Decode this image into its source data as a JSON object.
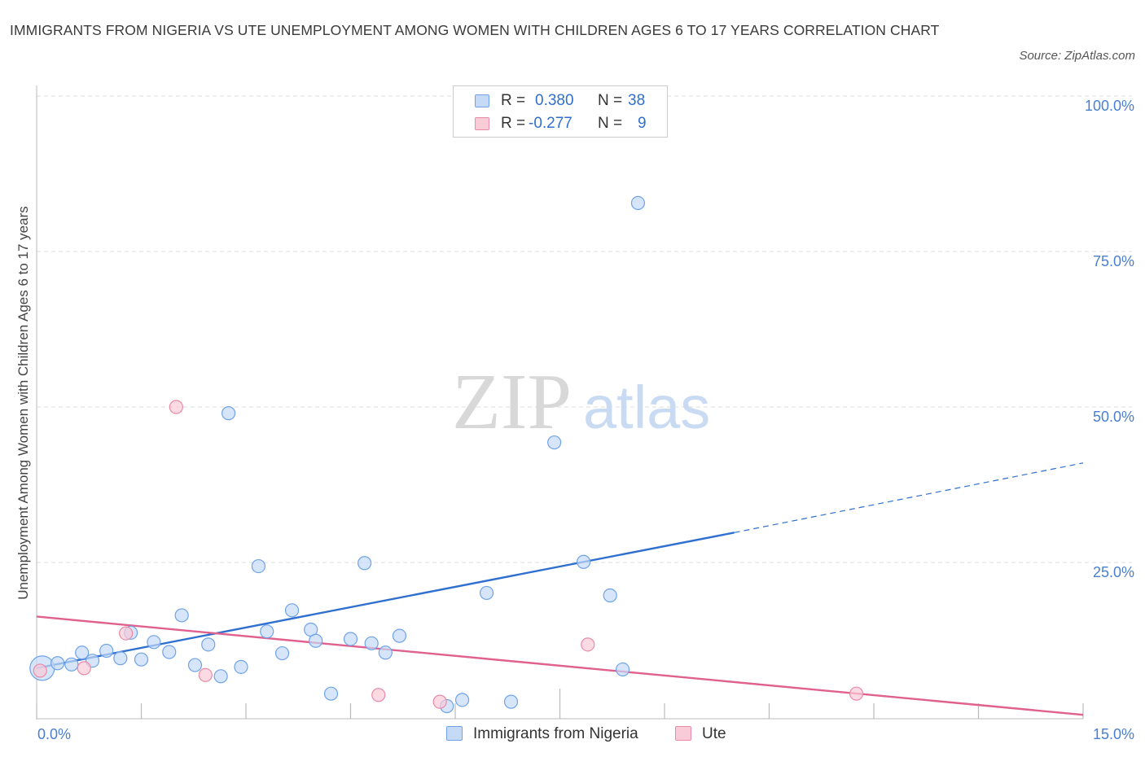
{
  "title": "IMMIGRANTS FROM NIGERIA VS UTE UNEMPLOYMENT AMONG WOMEN WITH CHILDREN AGES 6 TO 17 YEARS CORRELATION CHART",
  "source": "Source: ZipAtlas.com",
  "watermark": {
    "zip": "ZIP",
    "atlas": "atlas"
  },
  "legend": {
    "rows": [
      {
        "r_label": "R =",
        "r_value": "0.380",
        "n_label": "N =",
        "n_value": "38",
        "color": "#6fa3e8",
        "fill": "#c5daf7"
      },
      {
        "r_label": "R =",
        "r_value": "-0.277",
        "n_label": "N =",
        "n_value": "9",
        "color": "#e88aa8",
        "fill": "#f9cbd9"
      }
    ]
  },
  "bottom_legend": [
    {
      "label": "Immigrants from Nigeria",
      "color": "#6fa3e8",
      "fill": "#c5daf7"
    },
    {
      "label": "Ute",
      "color": "#e88aa8",
      "fill": "#f9cbd9"
    }
  ],
  "chart_data": {
    "type": "scatter",
    "title": "IMMIGRANTS FROM NIGERIA VS UTE UNEMPLOYMENT AMONG WOMEN WITH CHILDREN AGES 6 TO 17 YEARS CORRELATION CHART",
    "xlabel": "",
    "ylabel": "Unemployment Among Women with Children Ages 6 to 17 years",
    "xlim": [
      0,
      15
    ],
    "ylim": [
      0,
      100
    ],
    "x_tick_labels": [
      {
        "value": 0,
        "label": "0.0%"
      },
      {
        "value": 15,
        "label": "15.0%"
      }
    ],
    "y_tick_labels": [
      {
        "value": 25,
        "label": "25.0%"
      },
      {
        "value": 50,
        "label": "50.0%"
      },
      {
        "value": 75,
        "label": "75.0%"
      },
      {
        "value": 100,
        "label": "100.0%"
      }
    ],
    "grid": "horizontal dashed",
    "legend_placement": "top-center",
    "series": [
      {
        "name": "Immigrants from Nigeria",
        "color": "#6fa3e8",
        "fill": "#c5daf7",
        "points": [
          {
            "x": 0.08,
            "y": 8.0,
            "big": true
          },
          {
            "x": 0.3,
            "y": 8.8
          },
          {
            "x": 0.5,
            "y": 8.6
          },
          {
            "x": 0.65,
            "y": 10.5
          },
          {
            "x": 0.8,
            "y": 9.2
          },
          {
            "x": 1.0,
            "y": 10.8
          },
          {
            "x": 1.2,
            "y": 9.6
          },
          {
            "x": 1.35,
            "y": 13.7
          },
          {
            "x": 1.5,
            "y": 9.4
          },
          {
            "x": 1.68,
            "y": 12.2
          },
          {
            "x": 1.9,
            "y": 10.6
          },
          {
            "x": 2.08,
            "y": 16.5
          },
          {
            "x": 2.27,
            "y": 8.5
          },
          {
            "x": 2.46,
            "y": 11.8
          },
          {
            "x": 2.64,
            "y": 6.7
          },
          {
            "x": 2.75,
            "y": 49.0
          },
          {
            "x": 2.93,
            "y": 8.2
          },
          {
            "x": 3.18,
            "y": 24.4
          },
          {
            "x": 3.3,
            "y": 13.9
          },
          {
            "x": 3.52,
            "y": 10.4
          },
          {
            "x": 3.66,
            "y": 17.3
          },
          {
            "x": 3.93,
            "y": 14.2
          },
          {
            "x": 4.0,
            "y": 12.4
          },
          {
            "x": 4.22,
            "y": 3.9
          },
          {
            "x": 4.5,
            "y": 12.7
          },
          {
            "x": 4.7,
            "y": 24.9
          },
          {
            "x": 4.8,
            "y": 12.0
          },
          {
            "x": 5.0,
            "y": 10.5
          },
          {
            "x": 5.2,
            "y": 13.2
          },
          {
            "x": 5.88,
            "y": 1.9
          },
          {
            "x": 6.1,
            "y": 2.9
          },
          {
            "x": 6.45,
            "y": 20.1
          },
          {
            "x": 6.8,
            "y": 2.6
          },
          {
            "x": 7.42,
            "y": 44.3
          },
          {
            "x": 7.84,
            "y": 25.1
          },
          {
            "x": 8.22,
            "y": 19.7
          },
          {
            "x": 8.4,
            "y": 7.8
          },
          {
            "x": 8.62,
            "y": 82.8
          }
        ]
      },
      {
        "name": "Ute",
        "color": "#e88aa8",
        "fill": "#f9cbd9",
        "points": [
          {
            "x": 0.05,
            "y": 7.6
          },
          {
            "x": 0.68,
            "y": 8.0
          },
          {
            "x": 1.28,
            "y": 13.6
          },
          {
            "x": 2.0,
            "y": 50.0
          },
          {
            "x": 2.42,
            "y": 6.9
          },
          {
            "x": 4.9,
            "y": 3.7
          },
          {
            "x": 5.78,
            "y": 2.6
          },
          {
            "x": 7.9,
            "y": 11.8
          },
          {
            "x": 11.75,
            "y": 3.9
          }
        ]
      }
    ],
    "trend_lines": [
      {
        "series": "Immigrants from Nigeria",
        "x1": 0.0,
        "y1": 8.0,
        "x2": 10.0,
        "y2": 29.8,
        "dashed_to_x": 15.0,
        "dashed_to_y": 41.0,
        "color": "#2f6fd0"
      },
      {
        "series": "Ute",
        "x1": 0.0,
        "y1": 16.3,
        "x2": 15.0,
        "y2": 0.5,
        "color": "#e0608e"
      }
    ]
  }
}
